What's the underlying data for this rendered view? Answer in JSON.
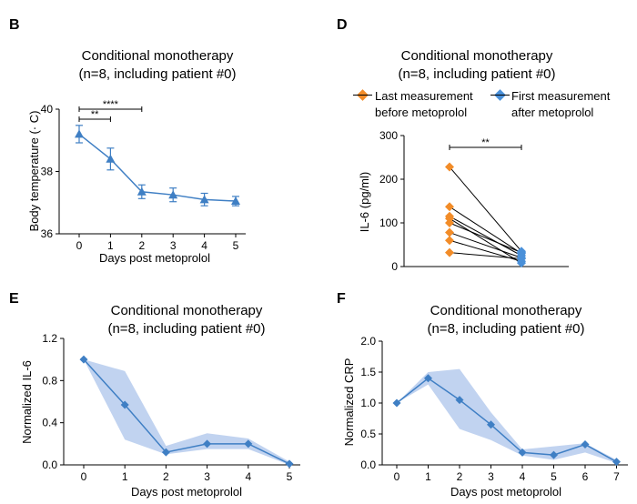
{
  "chart_data": [
    {
      "panel_label": "B",
      "type": "line",
      "title_line1": "Conditional monotherapy",
      "title_line2": "(n=8, including patient #0)",
      "xlabel": "Days post metoprolol",
      "ylabel": "Body temperature (· C)",
      "x": [
        0,
        1,
        2,
        3,
        4,
        5
      ],
      "values": [
        39.2,
        38.4,
        37.35,
        37.25,
        37.1,
        37.05
      ],
      "errors": [
        0.28,
        0.35,
        0.22,
        0.22,
        0.2,
        0.15
      ],
      "ylim": [
        36,
        40
      ],
      "yticks": [
        "36",
        "38",
        "40"
      ],
      "xticks": [
        "0",
        "1",
        "2",
        "3",
        "4",
        "5"
      ],
      "significance": [
        {
          "from": 0,
          "to": 1,
          "label": "**"
        },
        {
          "from": 0,
          "to": 2,
          "label": "****"
        }
      ],
      "color": "#3f7fc4"
    },
    {
      "panel_label": "D",
      "type": "scatter",
      "title_line1": "Conditional monotherapy",
      "title_line2": "(n=8, including patient #0)",
      "ylabel": "IL-6 (pg/ml)",
      "ylim": [
        0,
        300
      ],
      "yticks": [
        "0",
        "100",
        "200",
        "300"
      ],
      "legend": [
        {
          "label_line1": "Last measurement",
          "label_line2": "before metoprolol",
          "color": "#f28c28"
        },
        {
          "label_line1": "First measurement",
          "label_line2": "after metoprolol",
          "color": "#4a90d9"
        }
      ],
      "pairs": [
        {
          "before": 228,
          "after": 35
        },
        {
          "before": 137,
          "after": 30
        },
        {
          "before": 115,
          "after": 25
        },
        {
          "before": 100,
          "after": 32
        },
        {
          "before": 78,
          "after": 20
        },
        {
          "before": 60,
          "after": 12
        },
        {
          "before": 32,
          "after": 18
        },
        {
          "before": 110,
          "after": 8
        }
      ],
      "significance": "**"
    },
    {
      "panel_label": "E",
      "type": "area",
      "title_line1": "Conditional monotherapy",
      "title_line2": "(n=8, including patient #0)",
      "xlabel": "Days post metoprolol",
      "ylabel": "Normalized IL-6",
      "x": [
        0,
        1,
        2,
        3,
        4,
        5
      ],
      "values": [
        1.0,
        0.57,
        0.12,
        0.2,
        0.2,
        0.01
      ],
      "upper": [
        1.0,
        0.89,
        0.18,
        0.3,
        0.25,
        0.03
      ],
      "lower": [
        1.0,
        0.24,
        0.1,
        0.15,
        0.15,
        0.0
      ],
      "ylim": [
        0,
        1.2
      ],
      "yticks": [
        "0.0",
        "0.4",
        "0.8",
        "1.2"
      ],
      "xticks": [
        "0",
        "1",
        "2",
        "3",
        "4",
        "5"
      ],
      "color": "#3f7fc4",
      "band_color": "#b6cbed"
    },
    {
      "panel_label": "F",
      "type": "area",
      "title_line1": "Conditional monotherapy",
      "title_line2": "(n=8, including patient #0)",
      "xlabel": "Days post metoprolol",
      "ylabel": "Normalized CRP",
      "x": [
        0,
        1,
        2,
        3,
        4,
        5,
        6,
        7
      ],
      "values": [
        1.0,
        1.4,
        1.05,
        0.65,
        0.2,
        0.16,
        0.33,
        0.05
      ],
      "upper": [
        1.0,
        1.5,
        1.55,
        0.85,
        0.25,
        0.3,
        0.35,
        0.08
      ],
      "lower": [
        1.0,
        1.3,
        0.58,
        0.4,
        0.15,
        0.08,
        0.2,
        0.03
      ],
      "ylim": [
        0,
        2.0
      ],
      "yticks": [
        "0.0",
        "0.5",
        "1.0",
        "1.5",
        "2.0"
      ],
      "xticks": [
        "0",
        "1",
        "2",
        "3",
        "4",
        "5",
        "6",
        "7"
      ],
      "color": "#3f7fc4",
      "band_color": "#b6cbed"
    }
  ]
}
